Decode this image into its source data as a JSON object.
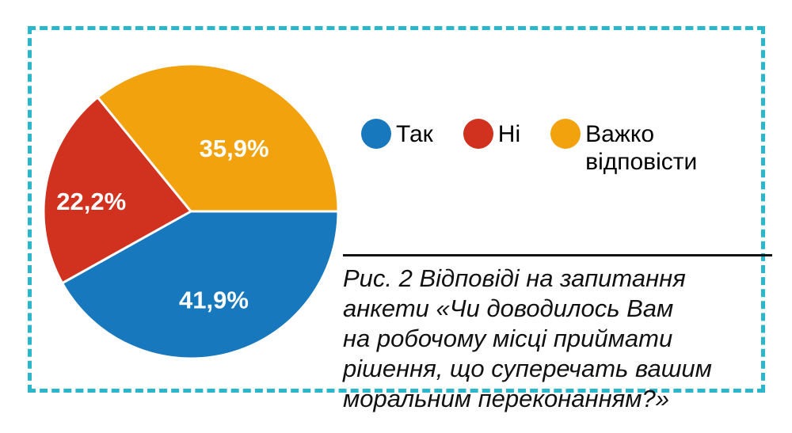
{
  "colors": {
    "blue": "#1778be",
    "red": "#d0321f",
    "orange": "#f2a20d",
    "frame": "#2ab6cb",
    "slice_label": "#ffffff",
    "caption_text": "#111111"
  },
  "chart_data": {
    "type": "pie",
    "labels": [
      "Так",
      "Ні",
      "Важко відповісти"
    ],
    "values": [
      41.9,
      22.2,
      35.9
    ],
    "value_labels": [
      "41,9%",
      "22,2%",
      "35,9%"
    ],
    "colors": [
      "#1778be",
      "#d0321f",
      "#f2a20d"
    ],
    "title": "",
    "legend_position": "right",
    "start_angle_deg": 0,
    "direction": "clockwise",
    "total": 100
  },
  "legend": {
    "items": [
      {
        "label": "Так",
        "color": "#1778be"
      },
      {
        "label": "Ні",
        "color": "#d0321f"
      },
      {
        "label": "Важко відповісти",
        "color": "#f2a20d"
      }
    ]
  },
  "caption": {
    "lines": [
      "Рис. 2 Відповіді на запитання",
      "анкети «Чи доводилось Вам",
      "на робочому місці приймати",
      "рішення, що суперечать вашим",
      "моральним переконанням?»"
    ]
  }
}
